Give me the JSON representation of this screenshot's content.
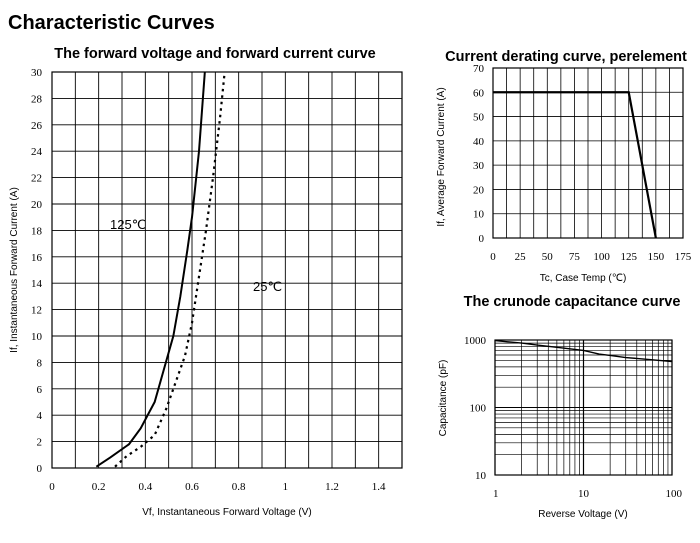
{
  "page": {
    "title": "Characteristic Curves"
  },
  "chart_data": [
    {
      "type": "line",
      "title": "The forward voltage and forward current curve",
      "xlabel": "Vf, Instantaneous Forward Voltage (V)",
      "ylabel": "If, Instantaneous Forward Current (A)",
      "xlim": [
        0,
        1.5
      ],
      "ylim": [
        0,
        30
      ],
      "x_ticks": [
        "0",
        "0.2",
        "0.4",
        "0.6",
        "0.8",
        "1",
        "1.2",
        "1.4"
      ],
      "y_ticks": [
        "0",
        "2",
        "4",
        "6",
        "8",
        "10",
        "12",
        "14",
        "16",
        "18",
        "20",
        "22",
        "24",
        "26",
        "28",
        "30"
      ],
      "grid": true,
      "annotations": [
        "125℃",
        "25℃"
      ],
      "series": [
        {
          "name": "125℃",
          "style": "solid",
          "x": [
            0.19,
            0.25,
            0.33,
            0.38,
            0.44,
            0.48,
            0.52,
            0.55,
            0.58,
            0.6,
            0.63,
            0.655
          ],
          "y": [
            0.1,
            0.8,
            1.8,
            3.0,
            5.0,
            7.5,
            10.0,
            13.0,
            16.5,
            19.0,
            24.0,
            30.0
          ]
        },
        {
          "name": "25℃",
          "style": "dotted",
          "x": [
            0.27,
            0.32,
            0.38,
            0.44,
            0.49,
            0.53,
            0.57,
            0.6,
            0.63,
            0.66,
            0.69,
            0.72,
            0.74
          ],
          "y": [
            0.1,
            0.9,
            1.6,
            2.5,
            4.5,
            6.5,
            8.5,
            11.0,
            14.5,
            18.0,
            22.0,
            26.5,
            30.0
          ]
        }
      ]
    },
    {
      "type": "line",
      "title": "Current derating curve, perelement",
      "xlabel": "Tc, Case Temp (℃)",
      "ylabel": "If, Average Forward Current (A)",
      "xlim": [
        0,
        175
      ],
      "ylim": [
        0,
        70
      ],
      "x_ticks": [
        "0",
        "25",
        "50",
        "75",
        "100",
        "125",
        "150",
        "175"
      ],
      "y_ticks": [
        "0",
        "10",
        "20",
        "30",
        "40",
        "50",
        "60",
        "70"
      ],
      "grid": true,
      "series": [
        {
          "x": [
            0,
            125,
            150
          ],
          "y": [
            60,
            60,
            0
          ]
        }
      ]
    },
    {
      "type": "line",
      "title": "The crunode capacitance curve",
      "xlabel": "Reverse Voltage (V)",
      "ylabel": "Capacitance (pF)",
      "xscale": "log",
      "yscale": "log",
      "xlim": [
        1,
        100
      ],
      "ylim": [
        10,
        1000
      ],
      "x_ticks": [
        "1",
        "10",
        "100"
      ],
      "y_ticks": [
        "10",
        "100",
        "1000"
      ],
      "grid": true,
      "series": [
        {
          "x": [
            1,
            2,
            3,
            5,
            10,
            15,
            20,
            30,
            50,
            100
          ],
          "y": [
            980,
            900,
            840,
            780,
            700,
            620,
            590,
            550,
            520,
            480
          ]
        }
      ]
    }
  ]
}
